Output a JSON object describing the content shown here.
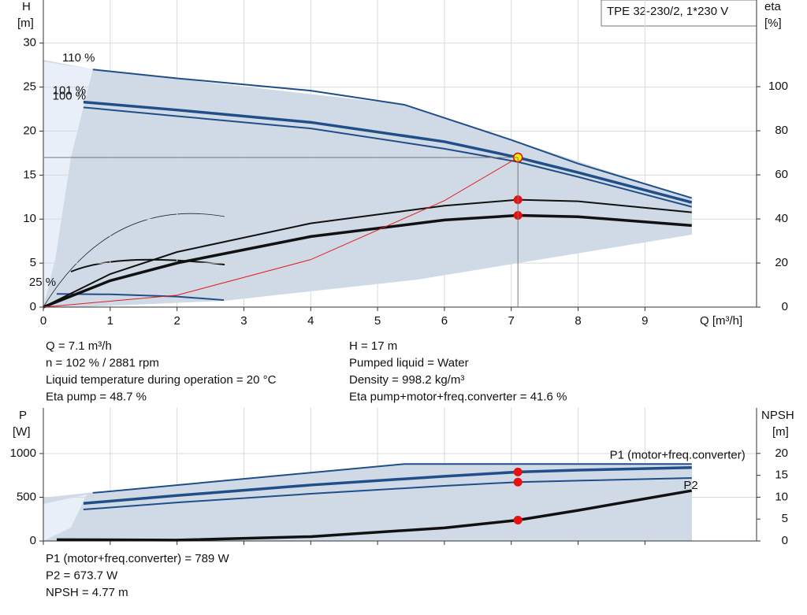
{
  "chart_data": [
    {
      "type": "line",
      "title": "TPE 32-230/2, 1*230 V",
      "x_label": "Q [m³/h]",
      "y_label": "H",
      "y_unit": "[m]",
      "y2_label": "eta",
      "y2_unit": "[%]",
      "xlim": [
        0,
        10.67
      ],
      "ylim": [
        0,
        34.9
      ],
      "y2lim": [
        0,
        139.3
      ],
      "xticks": [
        0,
        1,
        2,
        3,
        4,
        5,
        6,
        7,
        8,
        9
      ],
      "yticks": [
        0,
        5,
        10,
        15,
        20,
        25,
        30
      ],
      "y2ticks": [
        0,
        20,
        40,
        60,
        80,
        100
      ],
      "grid": true,
      "show_xtick_labels": true,
      "series": [
        {
          "name": "110 %",
          "color": "#1f4e89",
          "width": 2,
          "x": [
            0.74,
            2,
            4,
            5.4,
            7,
            8,
            9.7
          ],
          "values": [
            27.0,
            26.0,
            24.6,
            23.0,
            19.0,
            16.3,
            12.4
          ]
        },
        {
          "name": "101 %",
          "color": "#1f4e89",
          "width": 3.5,
          "x": [
            0.6,
            2,
            4,
            6,
            7.1,
            8,
            9.7
          ],
          "values": [
            23.3,
            22.4,
            21.0,
            18.8,
            17.0,
            15.3,
            11.9
          ]
        },
        {
          "name": "100 %",
          "color": "#1f4e89",
          "width": 2,
          "x": [
            0.6,
            2,
            4,
            6,
            7.1,
            8,
            9.7
          ],
          "values": [
            22.7,
            21.7,
            20.3,
            18.0,
            16.5,
            14.8,
            11.4
          ]
        },
        {
          "name": "25 %",
          "color": "#1f4e89",
          "width": 2,
          "x": [
            0.2,
            1,
            2,
            2.7
          ],
          "values": [
            1.5,
            1.45,
            1.2,
            0.8
          ]
        },
        {
          "color": "#111111",
          "width": 2,
          "axis": "y2",
          "x": [
            0,
            1,
            2,
            4,
            6,
            7.1,
            8,
            9.7
          ],
          "values": [
            0,
            15,
            25,
            38,
            46,
            48.7,
            48,
            43
          ]
        },
        {
          "color": "#111111",
          "width": 3.5,
          "axis": "y2",
          "x": [
            0,
            1,
            2,
            4,
            6,
            7.1,
            8,
            9.7
          ],
          "values": [
            0,
            12,
            20,
            32,
            39.5,
            41.6,
            41,
            37
          ]
        },
        {
          "color": "#e02020",
          "width": 1,
          "x": [
            0,
            2,
            4,
            6,
            7.1
          ],
          "values": [
            0,
            1.35,
            5.4,
            12.1,
            17
          ]
        },
        {
          "color": "#ffee00",
          "marker": true,
          "x": [
            7.1
          ],
          "values": [
            17
          ]
        },
        {
          "color": "#e81010",
          "marker": true,
          "axis": "y2",
          "x": [
            7.1,
            7.1
          ],
          "values": [
            48.7,
            41.6
          ]
        }
      ],
      "info": [
        [
          "Q = 7.1 m³/h",
          "n = 102 % / 2881 rpm",
          "Liquid temperature during operation = 20 °C",
          "Eta pump = 48.7 %"
        ],
        [
          "H = 17 m",
          "Pumped liquid = Water",
          "Density = 998.2 kg/m³",
          "Eta pump+motor+freq.converter = 41.6 %"
        ]
      ]
    },
    {
      "type": "line",
      "y_label": "P",
      "y_unit": "[W]",
      "y2_label": "NPSH",
      "y2_unit": "[m]",
      "xlim": [
        0,
        10.67
      ],
      "ylim": [
        0,
        1522
      ],
      "y2lim": [
        0,
        30.4
      ],
      "xticks": [
        0,
        1,
        2,
        3,
        4,
        5,
        6,
        7,
        8,
        9
      ],
      "yticks": [
        0,
        500,
        1000
      ],
      "y2ticks": [
        0,
        5,
        10,
        15,
        20
      ],
      "grid": true,
      "show_xtick_labels": false,
      "series": [
        {
          "color": "#1f4e89",
          "width": 2,
          "x": [
            0.74,
            5.4,
            9.7
          ],
          "values": [
            550,
            880,
            880
          ]
        },
        {
          "name": "P1 (motor+freq.converter)",
          "color": "#1f4e89",
          "width": 3.5,
          "x": [
            0.6,
            2,
            4,
            6,
            7.1,
            8,
            9.7
          ],
          "values": [
            430,
            520,
            640,
            740,
            789,
            810,
            840
          ]
        },
        {
          "name": "P2",
          "color": "#1f4e89",
          "width": 2,
          "x": [
            0.6,
            2,
            4,
            6,
            7.1,
            8,
            9.7
          ],
          "values": [
            360,
            440,
            540,
            630,
            673.7,
            690,
            720
          ]
        },
        {
          "color": "#111111",
          "width": 3.5,
          "axis": "y2",
          "x": [
            0.2,
            2,
            4,
            6,
            7.1,
            8,
            9.7
          ],
          "values": [
            0.3,
            0.2,
            1.0,
            3.0,
            4.77,
            7,
            11.5
          ]
        },
        {
          "color": "#e81010",
          "marker": true,
          "x": [
            7.1,
            7.1
          ],
          "values": [
            789,
            673.7
          ]
        },
        {
          "color": "#e81010",
          "marker": true,
          "axis": "y2",
          "x": [
            7.1
          ],
          "values": [
            4.77
          ]
        }
      ],
      "info": [
        [
          "P1 (motor+freq.converter) = 789 W",
          "P2 = 673.7 W",
          "NPSH = 4.77 m"
        ]
      ]
    }
  ]
}
